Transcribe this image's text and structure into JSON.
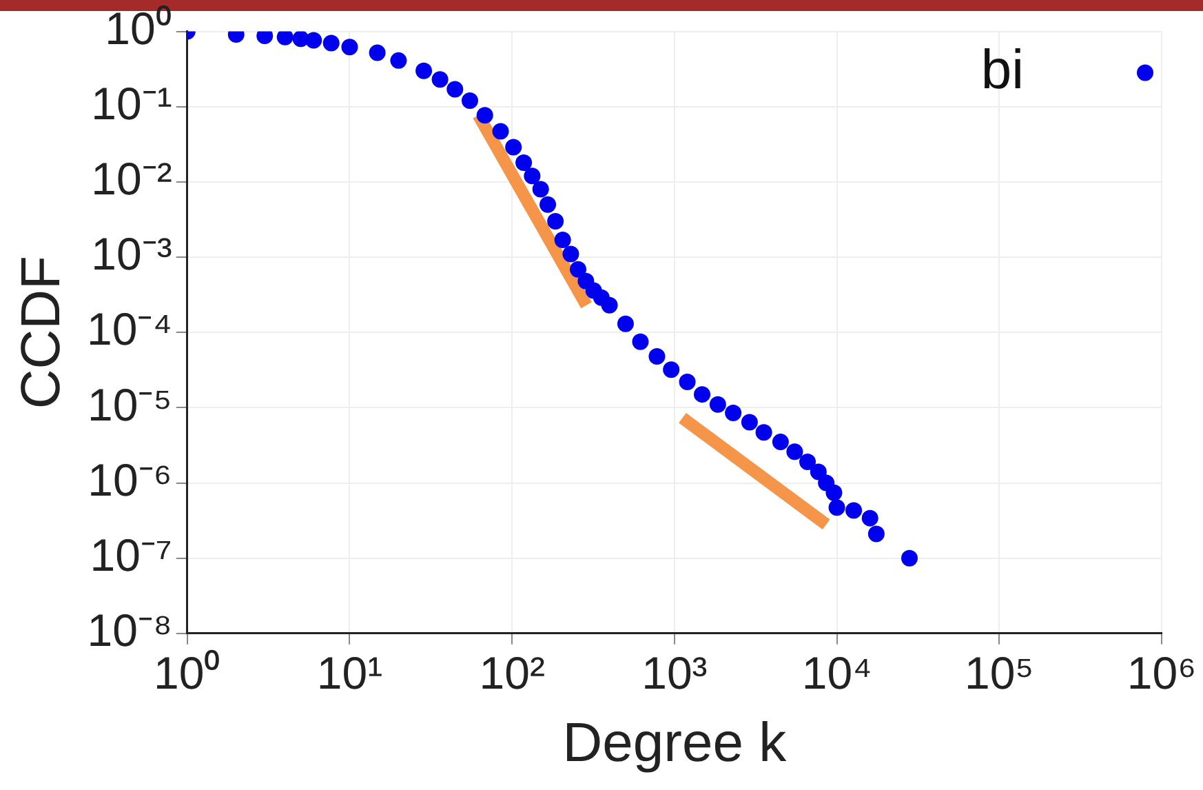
{
  "chart_data": {
    "type": "scatter",
    "xlabel": "Degree k",
    "ylabel": "CCDF",
    "log": "xy",
    "grid": true,
    "legend": "top right",
    "line_style": "solid",
    "xlim": [
      1,
      1000000
    ],
    "ylim": [
      1e-08,
      1
    ],
    "xticks": [
      {
        "value": 1,
        "label": "10⁰"
      },
      {
        "value": 10,
        "label": "10¹"
      },
      {
        "value": 100,
        "label": "10²"
      },
      {
        "value": 1000,
        "label": "10³"
      },
      {
        "value": 10000,
        "label": "10⁴"
      },
      {
        "value": 100000,
        "label": "10⁵"
      },
      {
        "value": 1000000,
        "label": "10⁶"
      }
    ],
    "yticks": [
      {
        "value": 1e-08,
        "label": "10⁻⁸"
      },
      {
        "value": 1e-07,
        "label": "10⁻⁷"
      },
      {
        "value": 1e-06,
        "label": "10⁻⁶"
      },
      {
        "value": 1e-05,
        "label": "10⁻⁵"
      },
      {
        "value": 0.0001,
        "label": "10⁻⁴"
      },
      {
        "value": 0.001,
        "label": "10⁻³"
      },
      {
        "value": 0.01,
        "label": "10⁻²"
      },
      {
        "value": 0.1,
        "label": "10⁻¹"
      },
      {
        "value": 1,
        "label": "10⁰"
      }
    ],
    "series": [
      {
        "name": "bi",
        "marker": "circle",
        "color": "#0000ee",
        "x": [
          1,
          2,
          3,
          4,
          5,
          6,
          7.7,
          10,
          14.8,
          20,
          28.6,
          36,
          44.5,
          55,
          68,
          85,
          102,
          118,
          133,
          150,
          166,
          185,
          205,
          230,
          255,
          285,
          318,
          355,
          398,
          500,
          617,
          780,
          955,
          1200,
          1480,
          1850,
          2300,
          2900,
          3550,
          4500,
          5500,
          6600,
          7700,
          8600,
          9600,
          10000,
          12700,
          16000,
          17500,
          28000
        ],
        "values": [
          1,
          0.91,
          0.875,
          0.84,
          0.8,
          0.76,
          0.7,
          0.62,
          0.52,
          0.41,
          0.3,
          0.23,
          0.17,
          0.12,
          0.077,
          0.047,
          0.029,
          0.018,
          0.012,
          0.008,
          0.005,
          0.003,
          0.0017,
          0.0011,
          0.00069,
          0.00048,
          0.00036,
          0.00029,
          0.00023,
          0.00013,
          7.5e-05,
          4.8e-05,
          3.2e-05,
          2.2e-05,
          1.5e-05,
          1.1e-05,
          8.5e-06,
          6.4e-06,
          4.7e-06,
          3.5e-06,
          2.6e-06,
          1.9e-06,
          1.4e-06,
          1e-06,
          7.4e-07,
          4.7e-07,
          4.3e-07,
          3.4e-07,
          2.1e-07,
          1e-07
        ]
      },
      {
        "type": "line",
        "marker": "none",
        "color": "#f5954a",
        "x": [
          62,
          287
        ],
        "values": [
          0.077,
          0.00023
        ]
      },
      {
        "type": "line",
        "marker": "none",
        "color": "#f5954a",
        "x": [
          1120,
          8600
        ],
        "values": [
          7.3e-06,
          2.8e-07
        ]
      }
    ]
  }
}
